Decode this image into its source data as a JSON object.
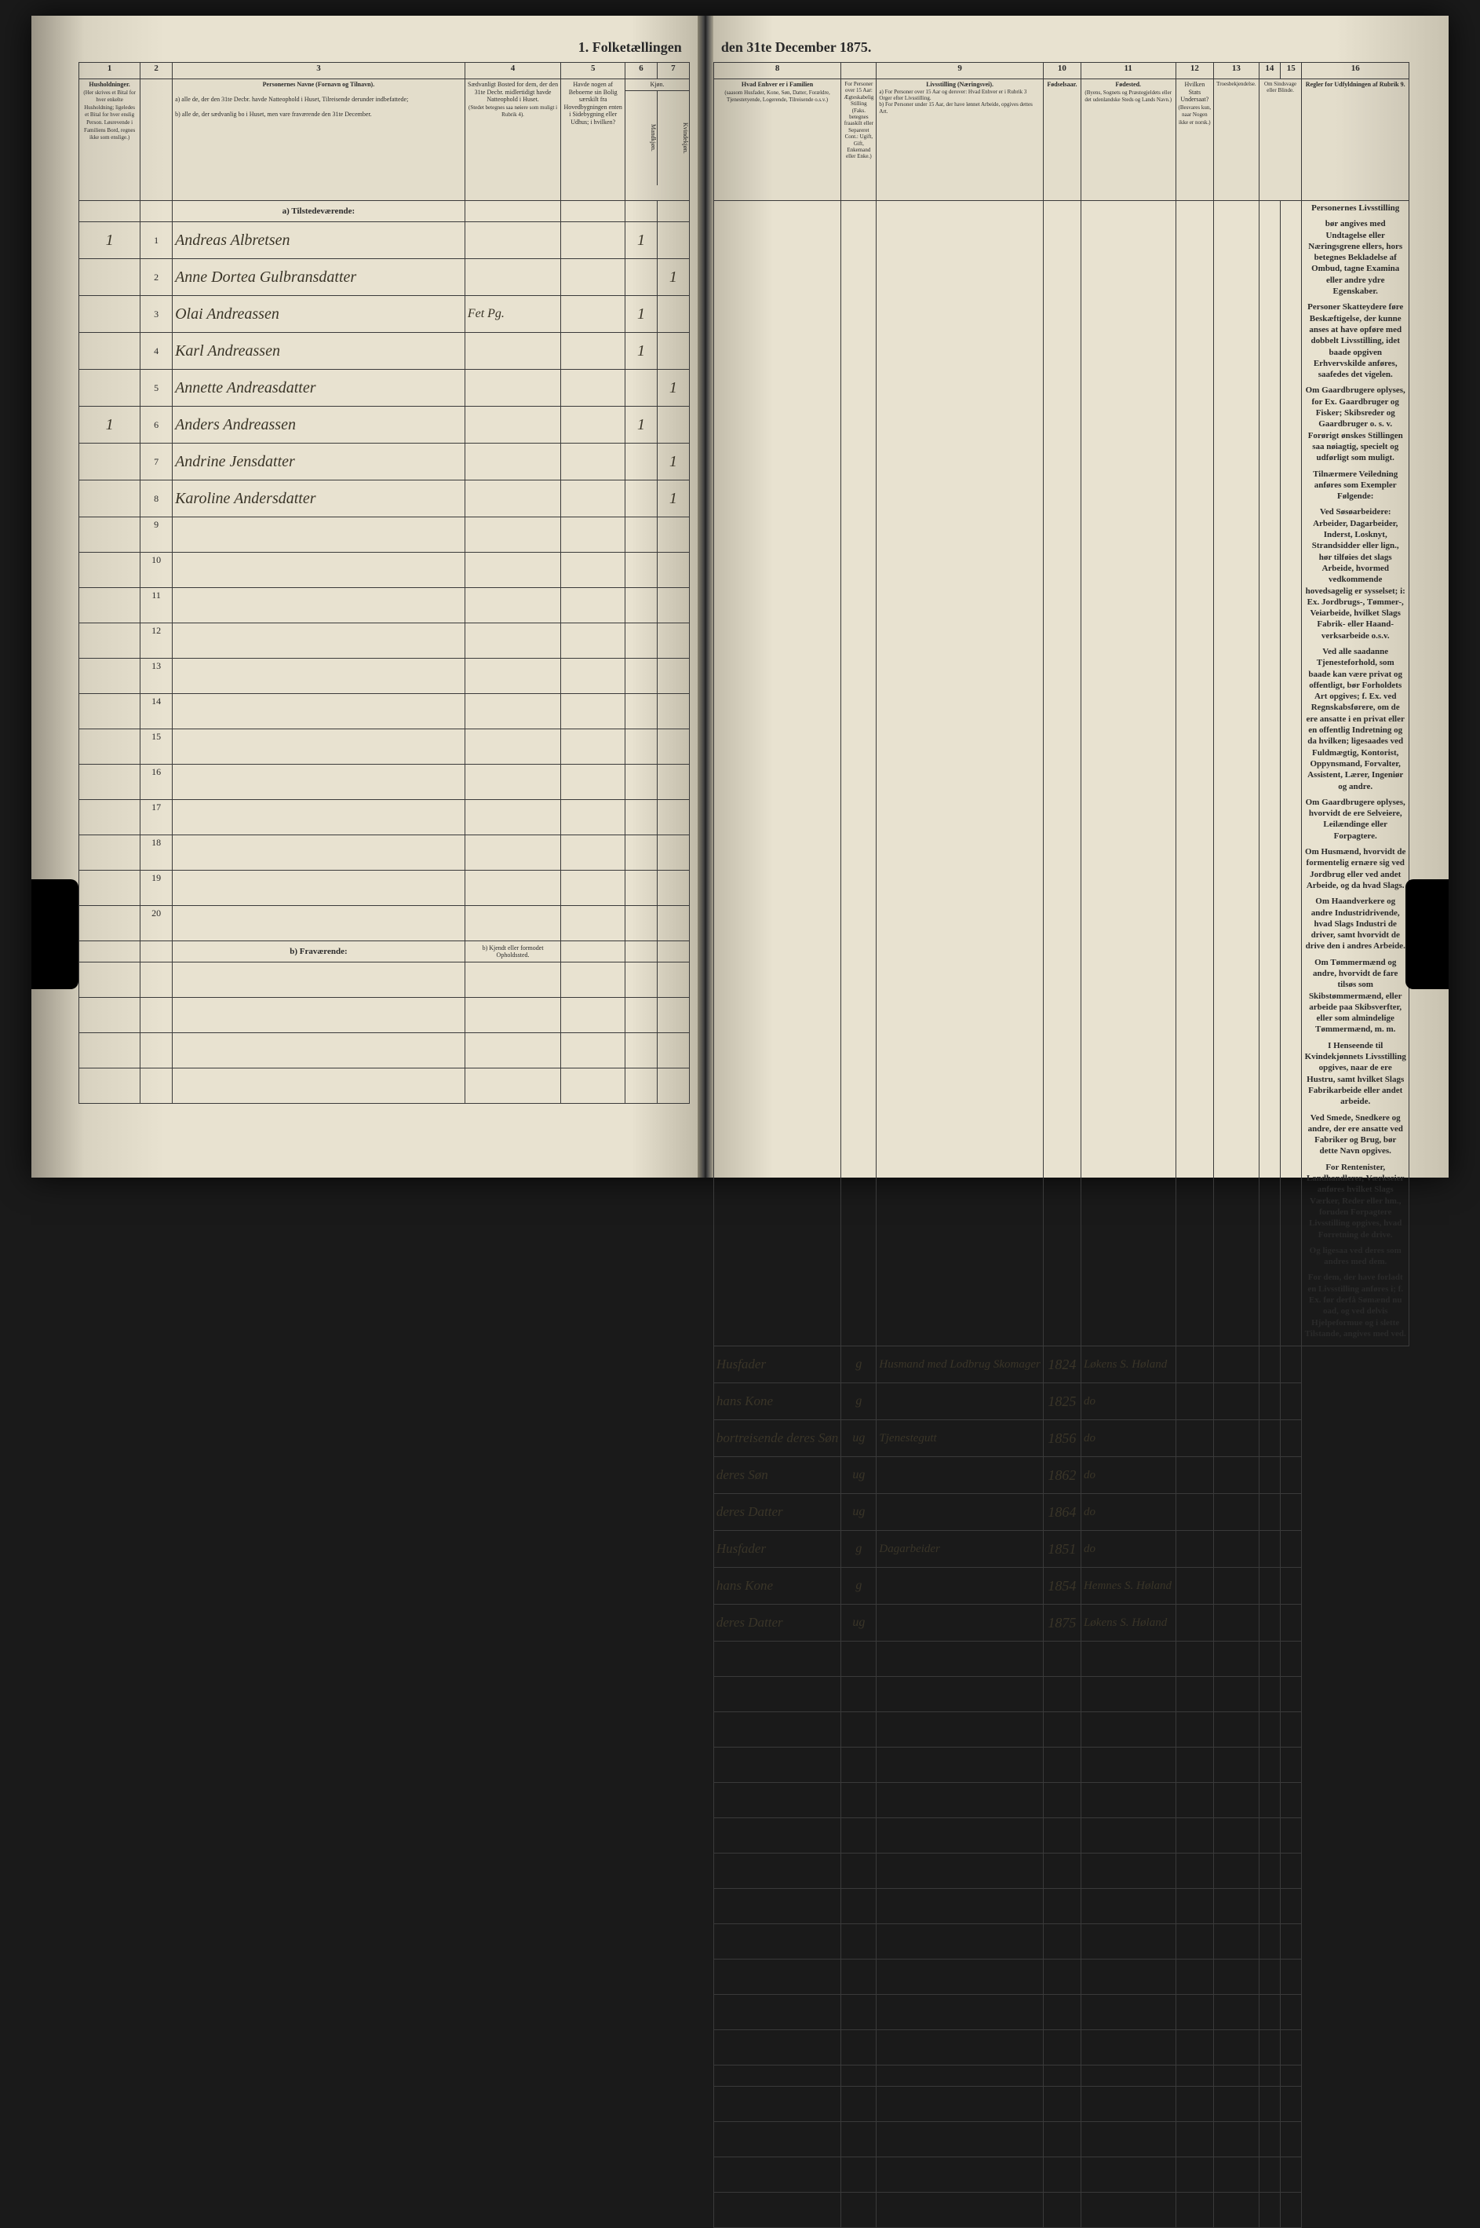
{
  "title_left": "1. Folketællingen",
  "title_right": "den 31te December 1875.",
  "col_numbers_left": [
    "1",
    "2",
    "3",
    "4",
    "5",
    "6",
    "7"
  ],
  "col_numbers_right": [
    "8",
    "9",
    "10",
    "11",
    "12",
    "13",
    "14",
    "15",
    "16"
  ],
  "headers_left": {
    "c1": "Husholdninger.",
    "c1_sub": "(Her skrives et Bital for hver enkelte Husholdning; ligeledes et Bital for hver enslig Person. Løsrevende i Familiens Bord, regnes ikke som enslige.)",
    "c2": "",
    "c3": "Personernes Navne (Fornavn og Tilnavn).",
    "c3_sub_a": "a) alle de, der den 31te Decbr. havde Natteophold i Huset, Tilreisende derunder indbefattede;",
    "c3_sub_b": "b) alle de, der sædvanlig bo i Huset, men vare fraværende den 31te December.",
    "c4": "Sædvanligt Bosted for dem, der den 31te Decbr. midlertidigt havde Natteophold i Huset.",
    "c4_sub": "(Stedet betegnes saa nøiere som muligt i Rubrik 4).",
    "c5": "Havde nogen af Beboerne sin Bolig særskilt fra Hovedbygningen enten i Sidebygning eller Udhus; i hvilken?",
    "c6_7": "Kjøn.",
    "c6": "Mandkjøn.",
    "c7": "Kvindekjøn."
  },
  "headers_right": {
    "c8": "Hvad Enhver er i Familien",
    "c8_sub": "(saasom Husfader, Kone, Søn, Datter, Forældre, Tjenestetyende, Logerende, Tilreisende o.s.v.)",
    "c9_top": "For Personer over 15 Aar: Ægteskabelig Stilling (Faks. betegnes fraaskilt eller Separeret Cont.: Ugift, Gift, Enkemand eller Enke.)",
    "c9": "Livsstilling (Næringsvei).",
    "c9_a": "a) For Personer over 15 Aar og derover: Hvad Enhver er i Rubrik 3 Orger efter Livsstilling.",
    "c9_b": "b) For Personer under 15 Aar, der have lønnet Arbeide, opgives dettes Art.",
    "c10": "Fødselsaar.",
    "c11": "Fødested.",
    "c11_sub": "(Byens, Sognets og Præstegjeldets eller det udenlandske Steds og Lands Navn.)",
    "c12": "Hvilken Stats Undersaat?",
    "c12_sub": "(Besvares kun, naar Nogen ikke er norsk.)",
    "c13": "Troesbekjendelse.",
    "c14_15": "Om Sindsvage eller Blinde.",
    "c16": "Regler for Udfyldningen af Rubrik 9."
  },
  "section_a": "a) Tilstedeværende:",
  "section_b": "b) Fraværende:",
  "section_b_note": "b) Kjendt eller formodet Opholdssted.",
  "rows": [
    {
      "hh": "1",
      "n": "1",
      "name": "Andreas Albretsen",
      "c4": "",
      "c5": "",
      "c6": "1",
      "c7": "",
      "c8": "Husfader",
      "c8b": "g",
      "c9": "Husmand med Lodbrug Skomager",
      "c10": "1824",
      "c11": "Løkens S. Høland"
    },
    {
      "hh": "",
      "n": "2",
      "name": "Anne Dortea Gulbransdatter",
      "c4": "",
      "c5": "",
      "c6": "",
      "c7": "1",
      "c8": "hans Kone",
      "c8b": "g",
      "c9": "",
      "c10": "1825",
      "c11": "do"
    },
    {
      "hh": "",
      "n": "3",
      "name": "Olai Andreassen",
      "c4": "Fet Pg.",
      "c5": "",
      "c6": "1",
      "c7": "",
      "c8": "bortreisende deres Søn",
      "c8b": "ug",
      "c9": "Tjenestegutt",
      "c10": "1856",
      "c11": "do"
    },
    {
      "hh": "",
      "n": "4",
      "name": "Karl Andreassen",
      "c4": "",
      "c5": "",
      "c6": "1",
      "c7": "",
      "c8": "deres Søn",
      "c8b": "ug",
      "c9": "",
      "c10": "1862",
      "c11": "do"
    },
    {
      "hh": "",
      "n": "5",
      "name": "Annette Andreasdatter",
      "c4": "",
      "c5": "",
      "c6": "",
      "c7": "1",
      "c8": "deres Datter",
      "c8b": "ug",
      "c9": "",
      "c10": "1864",
      "c11": "do"
    },
    {
      "hh": "1",
      "n": "6",
      "name": "Anders Andreassen",
      "c4": "",
      "c5": "",
      "c6": "1",
      "c7": "",
      "c8": "Husfader",
      "c8b": "g",
      "c9": "Dagarbeider",
      "c10": "1851",
      "c11": "do"
    },
    {
      "hh": "",
      "n": "7",
      "name": "Andrine Jensdatter",
      "c4": "",
      "c5": "",
      "c6": "",
      "c7": "1",
      "c8": "hans Kone",
      "c8b": "g",
      "c9": "",
      "c10": "1854",
      "c11": "Hemnes S. Høland"
    },
    {
      "hh": "",
      "n": "8",
      "name": "Karoline Andersdatter",
      "c4": "",
      "c5": "",
      "c6": "",
      "c7": "1",
      "c8": "deres Datter",
      "c8b": "ug",
      "c9": "",
      "c10": "1875",
      "c11": "Løkens S. Høland"
    }
  ],
  "empty_rows_left": [
    "9",
    "10",
    "11",
    "12",
    "13",
    "14",
    "15",
    "16",
    "17",
    "18",
    "19",
    "20"
  ],
  "rules_title": "Personernes Livsstilling",
  "rules_paragraphs": [
    "bør angives med Undtagelse eller Næringsgrene ellers, hors betegnes Bekladelse af Ombud, tagne Examina eller andre ydre Egenskaber.",
    "Personer Skatteydere føre Beskæftigelse, der kunne anses at have opføre med dobbelt Livsstilling, idet baade opgiven Erhvervskilde anføres, saafedes det vigelen.",
    "Om Gaardbrugere oplyses, for Ex. Gaardbruger og Fisker; Skibsreder og Gaardbruger o. s. v. Forørigt ønskes Stillingen saa nøiagtig, specielt og udførligt som muligt.",
    "Tilnærmere Veiledning anføres som Exempler Følgende:",
    "Ved Søsøarbeidere: Arbeider, Dagarbeider, Inderst, Losknyt, Strandsidder eller lign., hør tilføies det slags Arbeide, hvormed vedkommende hovedsagelig er sysselset; i: Ex. Jordbrugs-, Tømmer-, Veiarbeide, hvilket Slags Fabrik- eller Haand-verksarbeide o.s.v.",
    "Ved alle saadanne Tjenesteforhold, som baade kan være privat og offentligt, bør Forholdets Art opgives; f. Ex. ved Regnskabsførere, om de ere ansatte i en privat eller en offentlig Indretning og da hvilken; ligesaades ved Fuldmægtig, Kontorist, Oppynsmand, Forvalter, Assistent, Lærer, Ingeniør og andre.",
    "Om Gaardbrugere oplyses, hvorvidt de ere Selveiere, Leilændinge eller Forpagtere.",
    "Om Husmænd, hvorvidt de formentelig ernære sig ved Jordbrug eller ved andet Arbeide, og da hvad Slags.",
    "Om Haandverkere og andre Industridrivende, hvad Slags Industri de driver, samt hvorvidt de drive den i andres Arbeide.",
    "Om Tømmermænd og andre, hvorvidt de fare tilsøs som Skibstømmermænd, eller arbeide paa Skibsverfter, eller som almindelige Tømmermænd, m. m.",
    "I Henseende til Kvindekjønnets Livsstilling opgives, naar de ere Hustru, samt hvilket Slags Fabrikarbeide eller andet arbeide.",
    "Ved Smede, Snedkere og andre, der ere ansatte ved Fabriker og Brug, bør dette Navn opgives.",
    "For Rentenister, Landhandlerer, Værkseier anføres hvilket Slags Værker, Reder eller hm., foruden Forpagtere Livsstilling opgives, hvad Forretning de drive.",
    "Og ligesaa ved deres som andres med dem.",
    "For dem, der have forladt en Livsstilling anføres i; f. Ex. før derfå Sømænd nu oad, og ved delvis Hjelpeformue og i slette Tilstande, angives med ved."
  ]
}
